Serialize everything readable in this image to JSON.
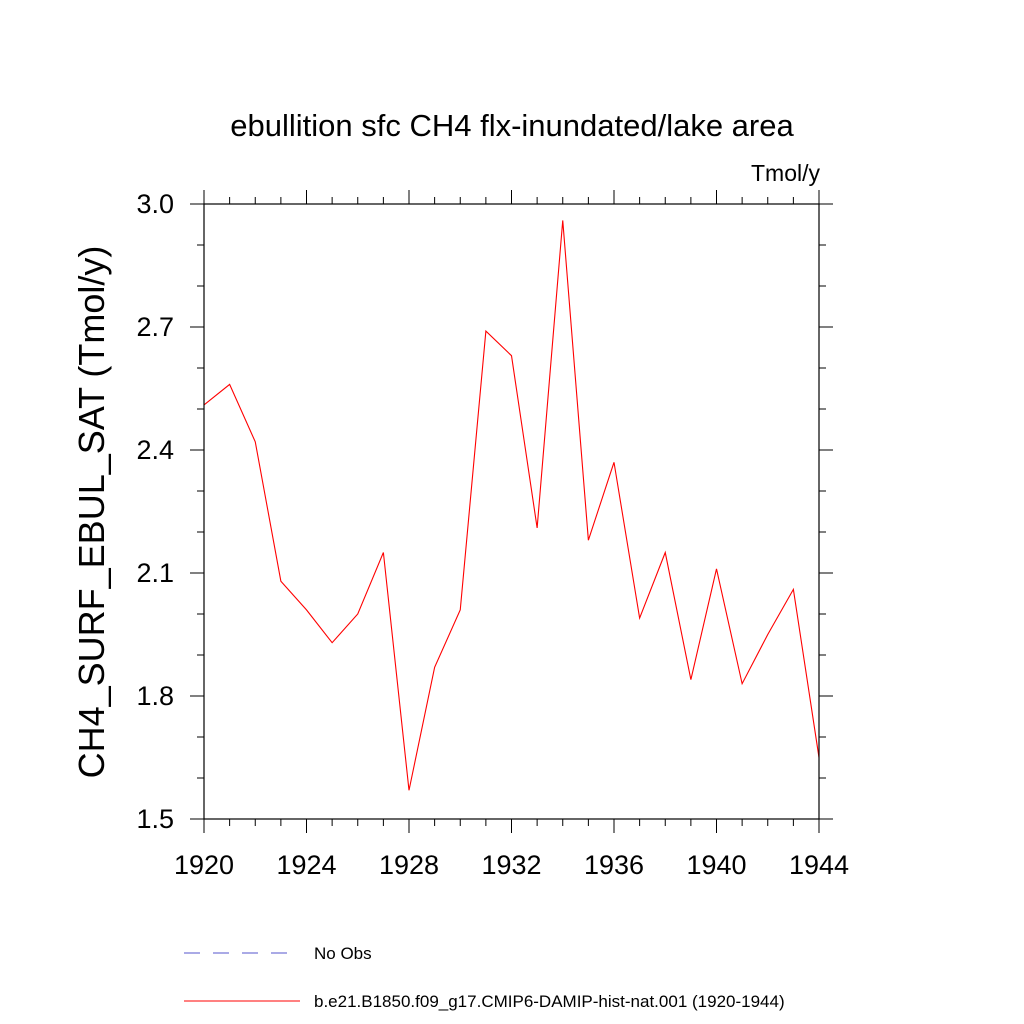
{
  "chart_data": {
    "type": "line",
    "title": "ebullition sfc CH4 flx-inundated/lake area",
    "units": "Tmol/y",
    "ylabel": "CH4_SURF_EBUL_SAT  (Tmol/y)",
    "xlabel": "",
    "xlim": [
      1920,
      1944
    ],
    "ylim": [
      1.5,
      3.0
    ],
    "x_ticks": [
      1920,
      1924,
      1928,
      1932,
      1936,
      1940,
      1944
    ],
    "x_tick_labels": [
      "1920",
      "1924",
      "1928",
      "1932",
      "1936",
      "1940",
      "1944"
    ],
    "y_ticks": [
      1.5,
      1.8,
      2.1,
      2.4,
      2.7,
      3.0
    ],
    "y_tick_labels": [
      "1.5",
      "1.8",
      "2.1",
      "2.4",
      "2.7",
      "3.0"
    ],
    "grid": false,
    "legend_position": "bottom",
    "series": [
      {
        "name": "b.e21.B1850.f09_g17.CMIP6-DAMIP-hist-nat.001 (1920-1944)",
        "color": "#ff0000",
        "style": "solid",
        "x": [
          1920,
          1921,
          1922,
          1923,
          1924,
          1925,
          1926,
          1927,
          1928,
          1929,
          1930,
          1931,
          1932,
          1933,
          1934,
          1935,
          1936,
          1937,
          1938,
          1939,
          1940,
          1941,
          1942,
          1943,
          1944
        ],
        "values": [
          2.51,
          2.56,
          2.42,
          2.08,
          2.01,
          1.93,
          2.0,
          2.15,
          1.57,
          1.87,
          2.01,
          2.69,
          2.63,
          2.21,
          2.96,
          2.18,
          2.37,
          1.99,
          2.15,
          1.84,
          2.11,
          1.83,
          1.95,
          2.06,
          1.65
        ]
      }
    ],
    "legend": [
      {
        "label": "No Obs",
        "color": "#5555cc",
        "style": "dashed"
      },
      {
        "label": "b.e21.B1850.f09_g17.CMIP6-DAMIP-hist-nat.001 (1920-1944)",
        "color": "#ff0000",
        "style": "solid"
      }
    ]
  }
}
